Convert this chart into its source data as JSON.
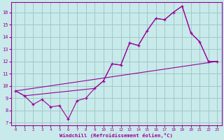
{
  "xlabel": "Windchill (Refroidissement éolien,°C)",
  "bg_color": "#c8eaea",
  "grid_color": "#a0c8c8",
  "line_color": "#990099",
  "xlim": [
    -0.5,
    23.5
  ],
  "ylim": [
    6.8,
    16.8
  ],
  "xticks": [
    0,
    1,
    2,
    3,
    4,
    5,
    6,
    7,
    8,
    9,
    10,
    11,
    12,
    13,
    14,
    15,
    16,
    17,
    18,
    19,
    20,
    21,
    22,
    23
  ],
  "yticks": [
    7,
    8,
    9,
    10,
    11,
    12,
    13,
    14,
    15,
    16
  ],
  "line1_x": [
    0,
    1,
    2,
    3,
    4,
    5,
    6,
    7,
    8,
    9,
    10,
    11,
    12,
    13,
    14,
    15,
    16,
    17,
    18,
    19,
    20,
    21,
    22,
    23
  ],
  "line1_y": [
    9.6,
    9.2,
    8.5,
    8.9,
    8.3,
    8.4,
    7.3,
    8.8,
    9.0,
    9.8,
    10.4,
    11.8,
    11.7,
    13.5,
    13.3,
    14.5,
    15.5,
    15.4,
    16.0,
    16.5,
    14.3,
    13.6,
    12.0,
    12.0
  ],
  "line2_x": [
    0,
    1,
    9,
    10,
    11,
    12,
    13,
    14,
    15,
    16,
    17,
    18,
    19,
    20,
    21,
    22,
    23
  ],
  "line2_y": [
    9.6,
    9.2,
    9.8,
    10.4,
    11.8,
    11.7,
    13.5,
    13.3,
    14.5,
    15.5,
    15.4,
    16.0,
    16.5,
    14.3,
    13.6,
    12.0,
    12.0
  ],
  "line3_x": [
    0,
    23
  ],
  "line3_y": [
    9.6,
    12.0
  ]
}
